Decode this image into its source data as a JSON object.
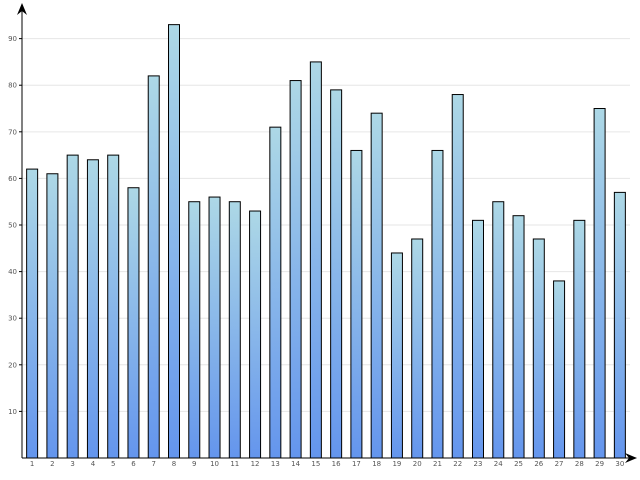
{
  "chart_data": {
    "type": "bar",
    "categories": [
      "1",
      "2",
      "3",
      "4",
      "5",
      "6",
      "7",
      "8",
      "9",
      "10",
      "11",
      "12",
      "13",
      "14",
      "15",
      "16",
      "17",
      "18",
      "19",
      "20",
      "21",
      "22",
      "23",
      "24",
      "25",
      "26",
      "27",
      "28",
      "29",
      "30"
    ],
    "values": [
      62,
      61,
      65,
      64,
      65,
      58,
      82,
      93,
      55,
      56,
      55,
      53,
      71,
      81,
      85,
      79,
      66,
      74,
      44,
      47,
      66,
      78,
      51,
      55,
      52,
      47,
      38,
      51,
      75,
      57
    ],
    "y_ticks": [
      "10",
      "20",
      "30",
      "40",
      "50",
      "60",
      "70",
      "80",
      "90"
    ],
    "ylim": [
      0,
      97
    ],
    "grid": true,
    "legend": "none",
    "colors": {
      "bar_top": "#add8e6",
      "bar_bottom": "#6495ed",
      "grid": "#e6e6e6",
      "axis": "#000000"
    }
  }
}
